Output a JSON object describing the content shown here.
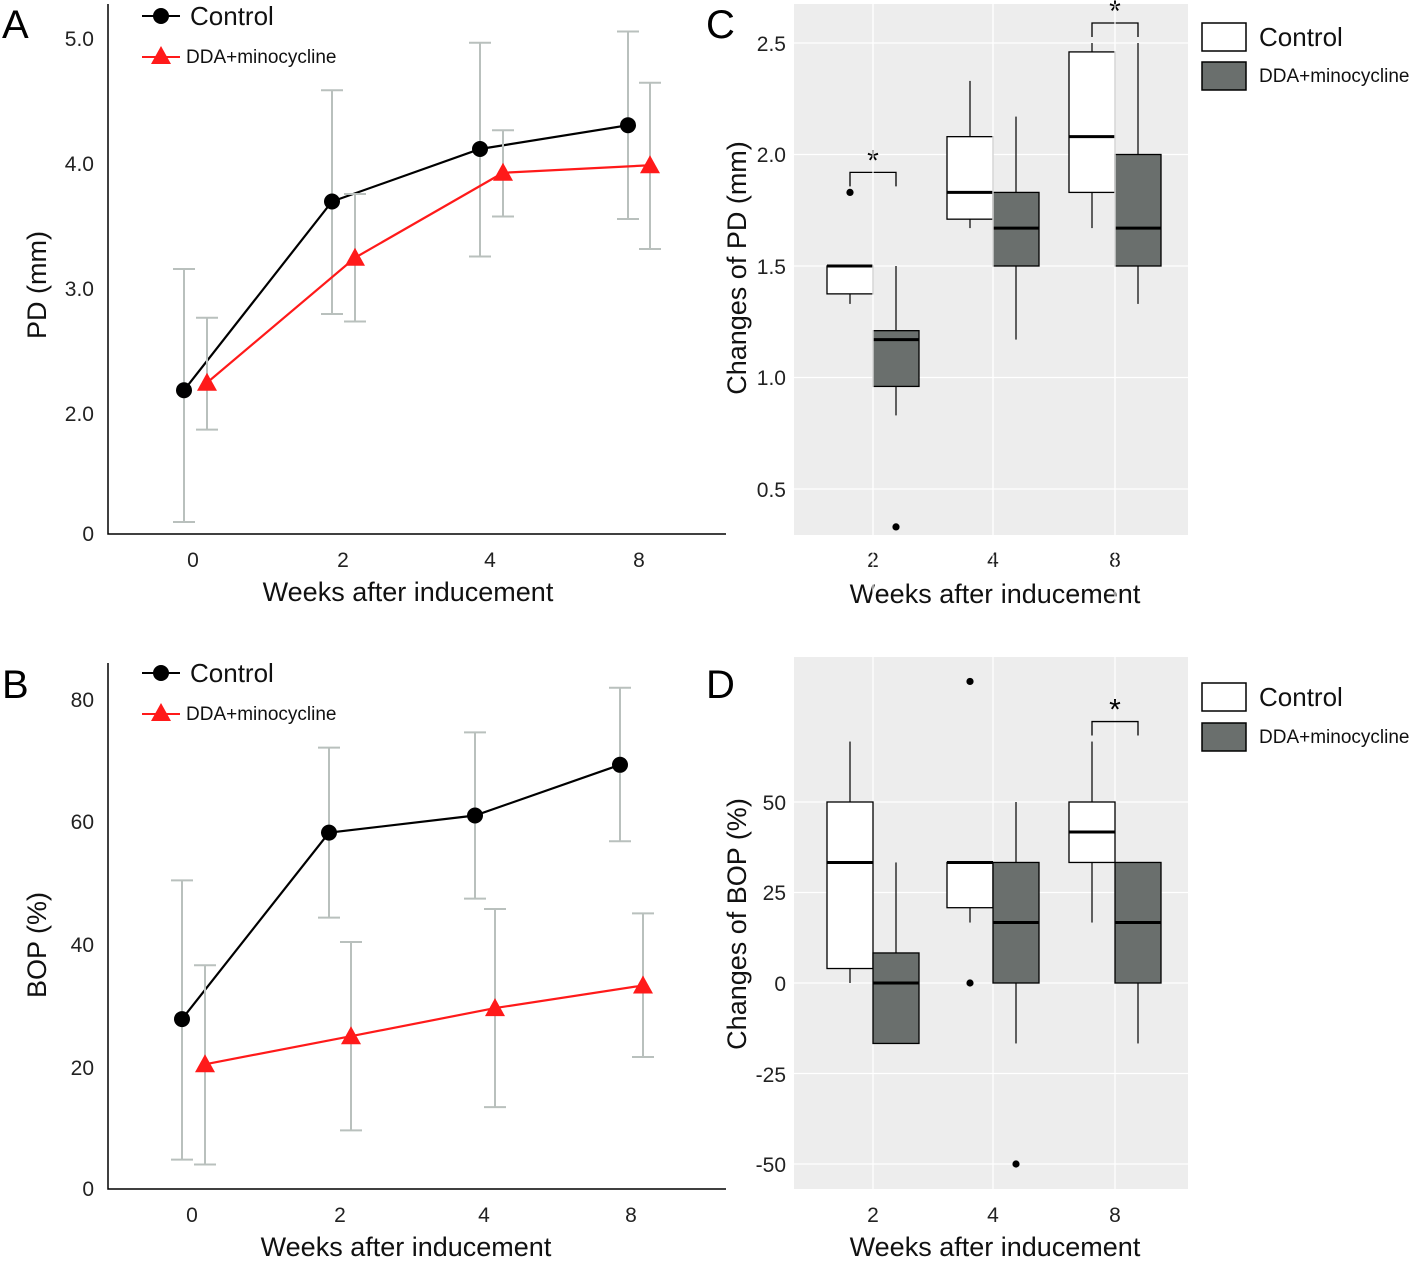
{
  "panels": {
    "A": {
      "letter": "A"
    },
    "B": {
      "letter": "B"
    },
    "C": {
      "letter": "C"
    },
    "D": {
      "letter": "D"
    }
  },
  "colors": {
    "control": "#000000",
    "dda": "#ff1a1a",
    "errorbar": "#b9c0bd",
    "box_control": "#ffffff",
    "box_dda": "#6a6f6d",
    "panel_bg": "#ededed",
    "grid": "#ffffff"
  },
  "chart_data": [
    {
      "id": "A",
      "type": "line",
      "xlabel": "Weeks after inducement",
      "ylabel": "PD (mm)",
      "categories": [
        "0",
        "2",
        "4",
        "8"
      ],
      "yticks": [
        "0",
        "2.0",
        "3.0",
        "4.0",
        "5.0"
      ],
      "ylim": [
        0,
        5.0
      ],
      "series": [
        {
          "name": "Control",
          "values": [
            2.19,
            3.7,
            4.12,
            4.31
          ],
          "err_low": [
            0.2,
            2.8,
            3.26,
            3.56
          ],
          "err_high": [
            3.16,
            4.59,
            4.97,
            5.06
          ]
        },
        {
          "name": "DDA+minocycline",
          "values": [
            2.25,
            3.25,
            3.93,
            3.99
          ],
          "err_low": [
            1.74,
            2.74,
            3.58,
            3.32
          ],
          "err_high": [
            2.77,
            3.76,
            4.27,
            4.65
          ]
        }
      ]
    },
    {
      "id": "B",
      "type": "line",
      "xlabel": "Weeks after inducement",
      "ylabel": "BOP (%)",
      "categories": [
        "0",
        "2",
        "4",
        "8"
      ],
      "yticks": [
        "0",
        "20",
        "40",
        "60",
        "80"
      ],
      "ylim": [
        0,
        80
      ],
      "series": [
        {
          "name": "Control",
          "values": [
            27.8,
            58.3,
            61.1,
            69.4
          ],
          "err_low": [
            4.8,
            44.4,
            47.5,
            56.9
          ],
          "err_high": [
            50.5,
            72.2,
            74.7,
            82.0
          ]
        },
        {
          "name": "DDA+minocycline",
          "values": [
            20.4,
            25.0,
            29.6,
            33.3
          ],
          "err_low": [
            4.0,
            9.6,
            13.4,
            21.6
          ],
          "err_high": [
            36.6,
            40.4,
            45.8,
            45.1
          ]
        }
      ]
    },
    {
      "id": "C",
      "type": "box",
      "xlabel": "Weeks after inducement",
      "ylabel": "Changes of PD (mm)",
      "categories": [
        "2",
        "4",
        "8"
      ],
      "yticks": [
        "0.5",
        "1.0",
        "1.5",
        "2.0",
        "2.5"
      ],
      "ylim": [
        0.33,
        2.63
      ],
      "significance": [
        "*",
        "",
        "*"
      ],
      "series": [
        {
          "name": "Control",
          "boxes": [
            {
              "min": 1.33,
              "q1": 1.375,
              "median": 1.5,
              "q3": 1.5,
              "max": 1.5,
              "outliers": [
                1.83
              ]
            },
            {
              "min": 1.67,
              "q1": 1.71,
              "median": 1.83,
              "q3": 2.08,
              "max": 2.33,
              "outliers": []
            },
            {
              "min": 1.67,
              "q1": 1.83,
              "median": 2.08,
              "q3": 2.46,
              "max": 2.5,
              "outliers": []
            }
          ]
        },
        {
          "name": "DDA+minocycline",
          "boxes": [
            {
              "min": 0.83,
              "q1": 0.96,
              "median": 1.17,
              "q3": 1.21,
              "max": 1.5,
              "outliers": [
                0.33
              ]
            },
            {
              "min": 1.17,
              "q1": 1.5,
              "median": 1.67,
              "q3": 1.83,
              "max": 2.17,
              "outliers": []
            },
            {
              "min": 1.33,
              "q1": 1.5,
              "median": 1.67,
              "q3": 2.0,
              "max": 2.5,
              "outliers": []
            }
          ]
        }
      ]
    },
    {
      "id": "D",
      "type": "box",
      "xlabel": "Weeks after inducement",
      "ylabel": "Changes of BOP (%)",
      "categories": [
        "2",
        "4",
        "8"
      ],
      "yticks": [
        "-50",
        "-25",
        "0",
        "25",
        "50"
      ],
      "ylim": [
        -58,
        90
      ],
      "significance": [
        "",
        "",
        "*"
      ],
      "series": [
        {
          "name": "Control",
          "boxes": [
            {
              "min": 0,
              "q1": 4,
              "median": 33.3,
              "q3": 50,
              "max": 66.7,
              "outliers": []
            },
            {
              "min": 16.7,
              "q1": 20.8,
              "median": 33.3,
              "q3": 33.3,
              "max": 33.3,
              "outliers": [
                0,
                83.3
              ]
            },
            {
              "min": 16.7,
              "q1": 33.3,
              "median": 41.7,
              "q3": 50,
              "max": 66.7,
              "outliers": []
            }
          ]
        },
        {
          "name": "DDA+minocycline",
          "boxes": [
            {
              "min": -16.7,
              "q1": -16.7,
              "median": 0,
              "q3": 8.3,
              "max": 33.3,
              "outliers": []
            },
            {
              "min": -16.7,
              "q1": 0,
              "median": 16.7,
              "q3": 33.3,
              "max": 50,
              "outliers": [
                -50
              ]
            },
            {
              "min": -16.7,
              "q1": 0,
              "median": 16.7,
              "q3": 33.3,
              "max": 33.3,
              "outliers": []
            }
          ]
        }
      ]
    }
  ]
}
